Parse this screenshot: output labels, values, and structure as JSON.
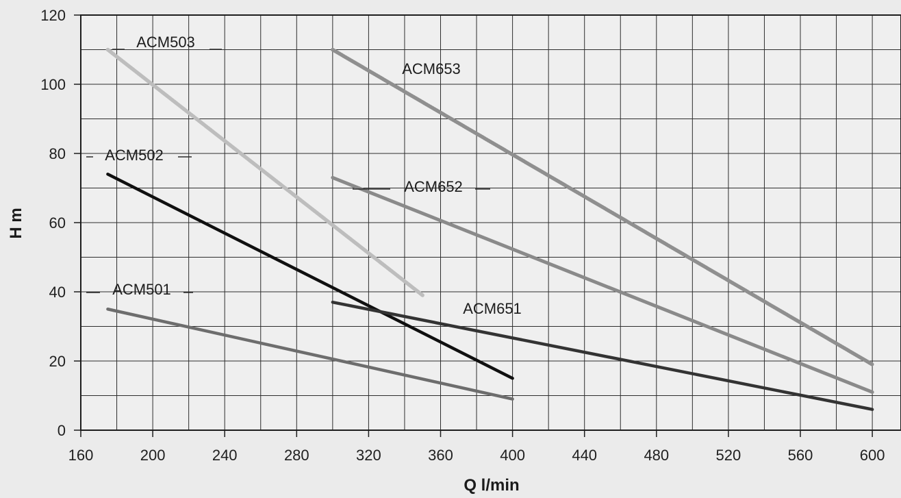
{
  "chart_data": {
    "type": "line",
    "title": "",
    "xlabel": "Q l/min",
    "ylabel": "H m",
    "xlim": [
      160,
      610
    ],
    "ylim": [
      0,
      120
    ],
    "grid": true,
    "x_ticks": [
      160,
      200,
      240,
      280,
      320,
      360,
      400,
      440,
      480,
      520,
      560,
      600
    ],
    "y_ticks": [
      0,
      20,
      40,
      60,
      80,
      100,
      120
    ],
    "series": [
      {
        "name": "ACM503",
        "x": [
          175,
          350
        ],
        "y": [
          110,
          39
        ],
        "color": "#bdbdbd"
      },
      {
        "name": "ACM502",
        "x": [
          175,
          400
        ],
        "y": [
          74,
          15
        ],
        "color": "#101010"
      },
      {
        "name": "ACM501",
        "x": [
          175,
          400
        ],
        "y": [
          35,
          9
        ],
        "color": "#6d6d6d"
      },
      {
        "name": "ACM653",
        "x": [
          300,
          600
        ],
        "y": [
          110,
          19
        ],
        "color": "#8f8f8f"
      },
      {
        "name": "ACM652",
        "x": [
          300,
          600
        ],
        "y": [
          73,
          11
        ],
        "color": "#8a8a8a"
      },
      {
        "name": "ACM651",
        "x": [
          300,
          600
        ],
        "y": [
          37,
          6
        ],
        "color": "#333333"
      }
    ]
  }
}
